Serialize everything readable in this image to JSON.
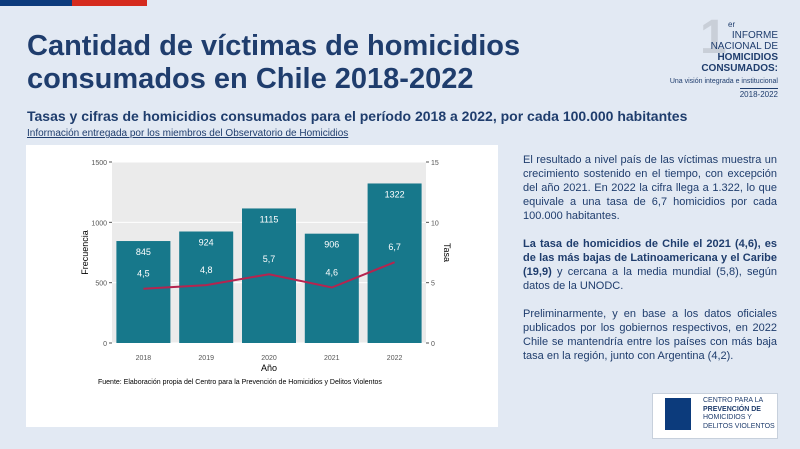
{
  "header": {
    "title": "Cantidad de víctimas de homicidios consumados en Chile 2018-2022",
    "subtitle": "Tasas y cifras de homicidios consumados para el período 2018 a 2022, por cada 100.000 habitantes",
    "link": "Información entregada por los miembros del Observatorio de Homicidios"
  },
  "logo": {
    "number": "1",
    "superscript": "er",
    "lines": [
      "INFORME",
      "NACIONAL DE",
      "HOMICIDIOS",
      "CONSUMADOS:"
    ],
    "tagline": "Una visión integrada e institucional",
    "period": "2018-2022"
  },
  "chart_data": {
    "type": "bar",
    "categories": [
      "2018",
      "2019",
      "2020",
      "2021",
      "2022"
    ],
    "x_label": "Año",
    "y_label": "Frecuencia",
    "y2_label": "Tasa",
    "series": [
      {
        "type": "bar",
        "color": "#17788b",
        "values": [
          845,
          924,
          1115,
          906,
          1322
        ]
      },
      {
        "type": "line",
        "axis": "y2",
        "color": "#b5244f",
        "values": [
          4.5,
          4.8,
          5.7,
          4.6,
          6.7
        ],
        "value_labels": [
          "4,5",
          "4,8",
          "5,7",
          "4,6",
          "6,7"
        ]
      }
    ],
    "ylim": [
      0,
      1500
    ],
    "yticks": [
      0,
      500,
      1000,
      1500
    ],
    "y2lim": [
      0,
      15
    ],
    "y2ticks": [
      0,
      5,
      10,
      15
    ],
    "grid": true,
    "caption": "Fuente: Elaboración propia del Centro para la Prevención de Homicidios y Delitos Violentos"
  },
  "body": {
    "paragraphs": [
      {
        "text": "El resultado a nivel país de las víctimas muestra un crecimiento sostenido en el tiempo, con excepción del año 2021. En 2022 la cifra llega a 1.322, lo que equivale a una tasa de 6,7 homicidios por cada 100.000 habitantes."
      },
      {
        "bold": "La tasa de homicidios de Chile el 2021 (4,6), es de las más bajas de Latinoamericana y el Caribe (19,9)",
        "text": " y cercana a la media mundial (5,8), según datos de la UNODC."
      },
      {
        "text": "Preliminarmente, y en base a los datos oficiales publicados por los gobiernos respectivos, en 2022 Chile se mantendría entre los países con más baja tasa en la región, junto con Argentina (4,2)."
      }
    ]
  },
  "centro": {
    "lines": [
      "CENTRO PARA LA",
      "PREVENCIÓN DE",
      "HOMICIDIOS Y",
      "DELITOS VIOLENTOS"
    ]
  }
}
